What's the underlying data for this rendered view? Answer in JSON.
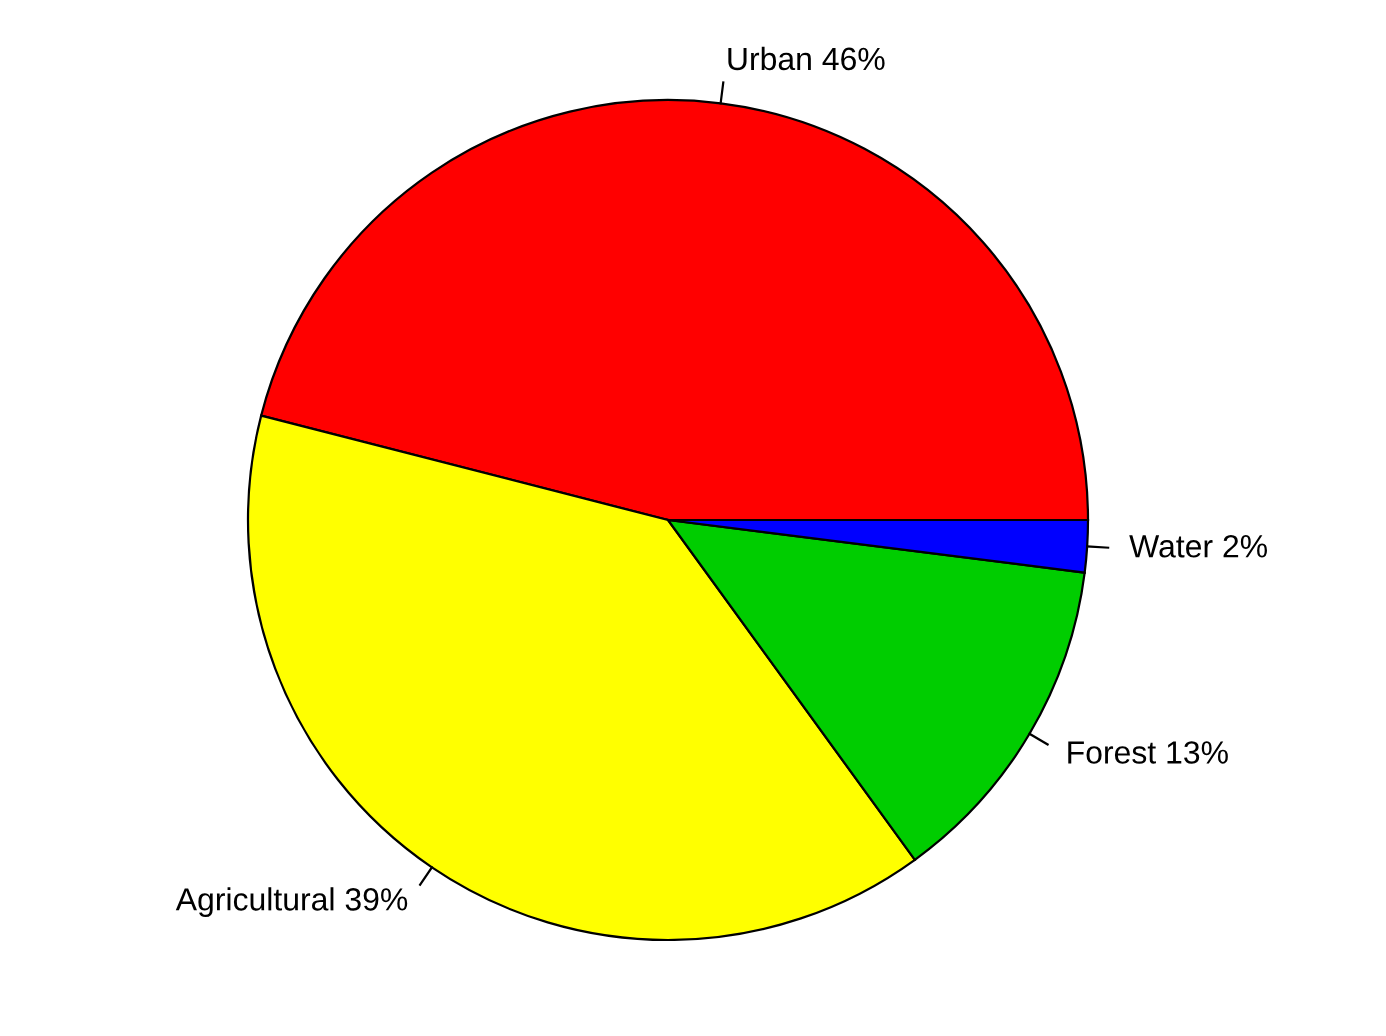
{
  "chart_data": {
    "type": "pie",
    "categories": [
      "Urban",
      "Agricultural",
      "Forest",
      "Water"
    ],
    "values": [
      46,
      39,
      13,
      2
    ],
    "value_labels": [
      "46%",
      "39%",
      "13%",
      "2%"
    ],
    "colors": [
      "#ff0000",
      "#ffff00",
      "#00cd00",
      "#0000ff"
    ],
    "legend": false
  }
}
